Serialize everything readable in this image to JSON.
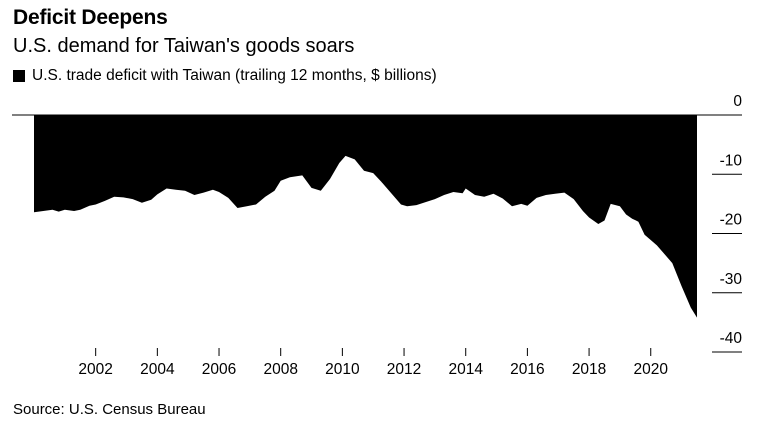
{
  "chart_data": {
    "type": "area",
    "title": "Deficit Deepens",
    "subtitle": "U.S. demand for Taiwan's goods soars",
    "legend": [
      {
        "name": "U.S. trade deficit with Taiwan (trailing 12 months, $ billions)",
        "color": "#000000"
      }
    ],
    "source": "Source: U.S. Census Bureau",
    "xlim": [
      2000.0,
      2021.5
    ],
    "ylim": [
      -40,
      0
    ],
    "x_ticks": [
      2002,
      2004,
      2006,
      2008,
      2010,
      2012,
      2014,
      2016,
      2018,
      2020
    ],
    "x_tick_labels": [
      "2002",
      "2004",
      "2006",
      "2008",
      "2010",
      "2012",
      "2014",
      "2016",
      "2018",
      "2020"
    ],
    "y_ticks": [
      0,
      -10,
      -20,
      -30,
      -40
    ],
    "y_tick_labels": [
      "0",
      "-10",
      "-20",
      "-30",
      "-40"
    ],
    "axis_position": "right",
    "grid": true,
    "series": [
      {
        "name": "U.S. trade deficit with Taiwan (trailing 12 months, $ billions)",
        "color": "#000000",
        "x": [
          2000.0,
          2000.3,
          2000.6,
          2000.8,
          2001.0,
          2001.3,
          2001.5,
          2001.8,
          2002.0,
          2002.3,
          2002.6,
          2002.9,
          2003.2,
          2003.5,
          2003.8,
          2004.0,
          2004.3,
          2004.6,
          2004.9,
          2005.2,
          2005.5,
          2005.8,
          2006.0,
          2006.3,
          2006.6,
          2006.9,
          2007.2,
          2007.5,
          2007.8,
          2008.0,
          2008.3,
          2008.7,
          2009.0,
          2009.3,
          2009.6,
          2009.9,
          2010.1,
          2010.4,
          2010.7,
          2011.0,
          2011.3,
          2011.6,
          2011.9,
          2012.1,
          2012.4,
          2012.7,
          2013.0,
          2013.3,
          2013.6,
          2013.9,
          2014.0,
          2014.3,
          2014.6,
          2014.9,
          2015.2,
          2015.5,
          2015.8,
          2016.0,
          2016.3,
          2016.6,
          2016.9,
          2017.2,
          2017.5,
          2017.8,
          2018.0,
          2018.3,
          2018.5,
          2018.7,
          2019.0,
          2019.2,
          2019.4,
          2019.6,
          2019.8,
          2020.0,
          2020.2,
          2020.4,
          2020.7,
          2021.0,
          2021.3,
          2021.5
        ],
        "values": [
          -16.4,
          -16.2,
          -16.0,
          -16.3,
          -16.0,
          -16.2,
          -16.0,
          -15.3,
          -15.1,
          -14.5,
          -13.8,
          -13.9,
          -14.2,
          -14.8,
          -14.3,
          -13.4,
          -12.4,
          -12.6,
          -12.8,
          -13.5,
          -13.1,
          -12.6,
          -13.0,
          -14.0,
          -15.7,
          -15.4,
          -15.1,
          -13.8,
          -12.8,
          -11.1,
          -10.5,
          -10.2,
          -12.3,
          -12.8,
          -10.8,
          -8.1,
          -6.9,
          -7.5,
          -9.4,
          -9.8,
          -11.5,
          -13.3,
          -15.1,
          -15.4,
          -15.2,
          -14.7,
          -14.2,
          -13.5,
          -13.0,
          -13.2,
          -12.4,
          -13.5,
          -13.8,
          -13.3,
          -14.1,
          -15.4,
          -15.0,
          -15.3,
          -14.0,
          -13.5,
          -13.3,
          -13.1,
          -14.2,
          -16.2,
          -17.3,
          -18.4,
          -17.8,
          -15.0,
          -15.4,
          -16.8,
          -17.5,
          -18.0,
          -20.2,
          -21.1,
          -22.0,
          -23.2,
          -25.0,
          -28.9,
          -32.5,
          -34.2
        ]
      }
    ]
  }
}
